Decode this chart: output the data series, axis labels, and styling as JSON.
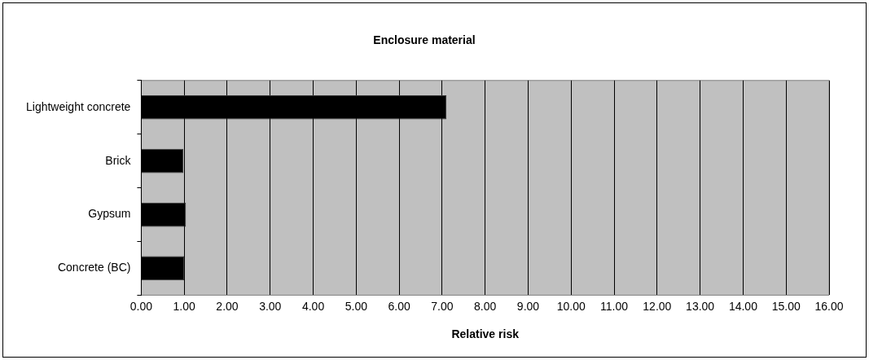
{
  "chart_data": {
    "type": "bar",
    "orientation": "horizontal",
    "title": "Enclosure material",
    "xlabel": "Relative risk",
    "categories": [
      "Lightweight concrete",
      "Brick",
      "Gypsum",
      "Concrete (BC)"
    ],
    "values": [
      7.1,
      0.98,
      1.04,
      1.0
    ],
    "color": "#000000",
    "xlim": [
      0,
      16
    ],
    "xticks": [
      {
        "value": 0,
        "label": "0.00"
      },
      {
        "value": 1,
        "label": "1.00"
      },
      {
        "value": 2,
        "label": "2.00"
      },
      {
        "value": 3,
        "label": "3.00"
      },
      {
        "value": 4,
        "label": "4.00"
      },
      {
        "value": 5,
        "label": "5.00"
      },
      {
        "value": 6,
        "label": "6.00"
      },
      {
        "value": 7,
        "label": "7.00"
      },
      {
        "value": 8,
        "label": "8.00"
      },
      {
        "value": 9,
        "label": "9.00"
      },
      {
        "value": 10,
        "label": "10.00"
      },
      {
        "value": 11,
        "label": "11.00"
      },
      {
        "value": 12,
        "label": "12.00"
      },
      {
        "value": 13,
        "label": "13.00"
      },
      {
        "value": 14,
        "label": "14.00"
      },
      {
        "value": 15,
        "label": "15.00"
      },
      {
        "value": 16,
        "label": "16.00"
      }
    ],
    "grid": "x",
    "legend": false
  }
}
